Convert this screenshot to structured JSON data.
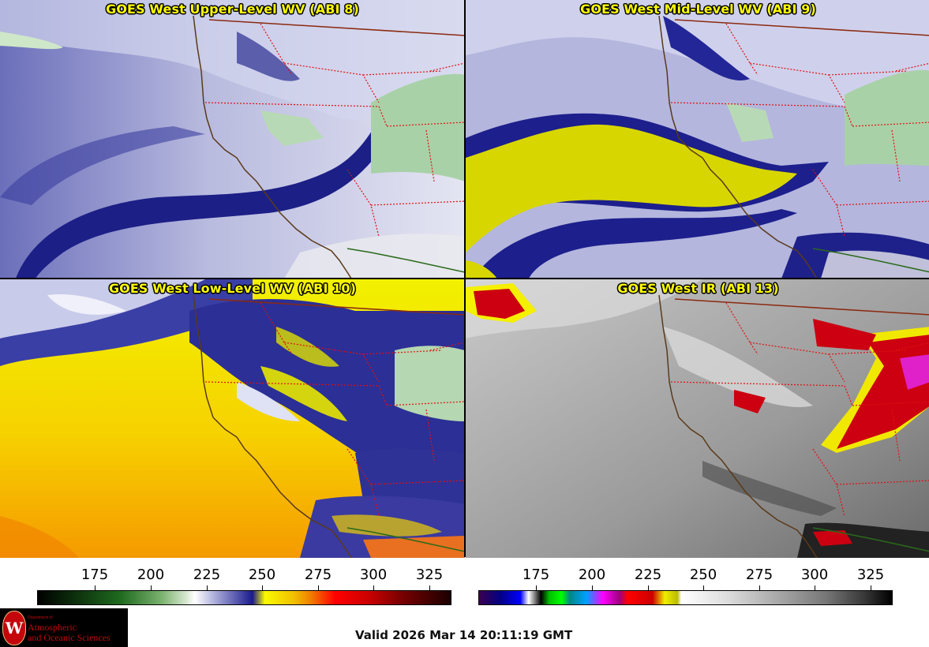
{
  "panels": {
    "top_left": {
      "title": "GOES West Upper-Level WV (ABI 8)"
    },
    "top_right": {
      "title": "GOES West Mid-Level WV (ABI 9)"
    },
    "bottom_left": {
      "title": "GOES West Low-Level WV (ABI 10)"
    },
    "bottom_right": {
      "title": "GOES West IR (ABI 13)"
    }
  },
  "colorbars": {
    "wv": {
      "ticks": [
        "175",
        "200",
        "225",
        "250",
        "275",
        "300",
        "325"
      ]
    },
    "ir": {
      "ticks": [
        "175",
        "200",
        "225",
        "250",
        "275",
        "300",
        "325"
      ]
    }
  },
  "logo": {
    "dept": "Department of",
    "name_line1": "Atmospheric",
    "name_line2": "and Oceanic Sciences",
    "seal": "W"
  },
  "footer": {
    "valid": "Valid 2026 Mar 14 20:11:19 GMT"
  }
}
